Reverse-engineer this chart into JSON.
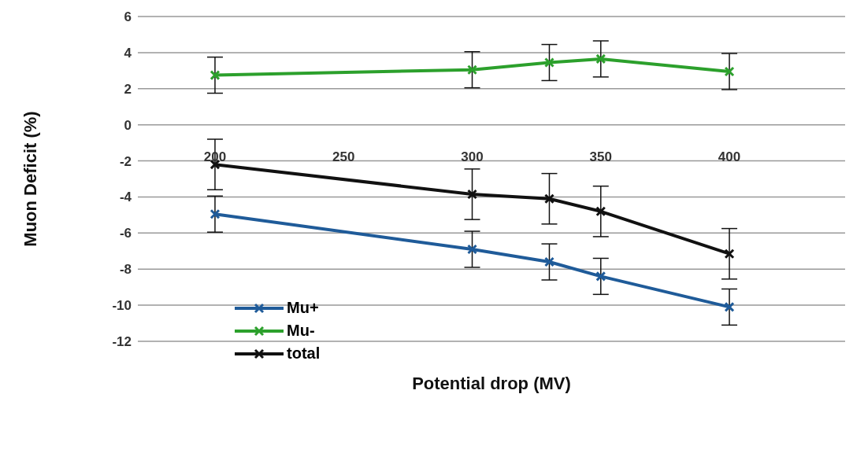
{
  "chart_data": {
    "type": "line",
    "xlabel": "Potential drop (MV)",
    "ylabel": "Muon Deficit (%)",
    "xlim": [
      170,
      445
    ],
    "xticks": [
      200,
      250,
      300,
      350,
      400
    ],
    "ylim": [
      -12,
      6
    ],
    "yticks": [
      -12,
      -10,
      -8,
      -6,
      -4,
      -2,
      0,
      2,
      4,
      6
    ],
    "grid": "y",
    "legend": "bottom left",
    "marker": "cross",
    "line_style": "solid",
    "series": [
      {
        "name": "Mu+",
        "color": "#1f5b99",
        "x": [
          200,
          300,
          330,
          350,
          400
        ],
        "values": [
          -4.95,
          -6.9,
          -7.6,
          -8.4,
          -10.1
        ],
        "errors": [
          1,
          1,
          1,
          1,
          1
        ]
      },
      {
        "name": "Mu-",
        "color": "#2ca02c",
        "x": [
          200,
          300,
          330,
          350,
          400
        ],
        "values": [
          2.75,
          3.05,
          3.45,
          3.65,
          2.95
        ],
        "errors": [
          1,
          1,
          1,
          1,
          1
        ]
      },
      {
        "name": "total",
        "color": "#111111",
        "x": [
          200,
          300,
          330,
          350,
          400
        ],
        "values": [
          -2.2,
          -3.85,
          -4.1,
          -4.8,
          -7.15
        ],
        "errors": [
          1.4,
          1.4,
          1.4,
          1.4,
          1.4
        ]
      }
    ]
  }
}
